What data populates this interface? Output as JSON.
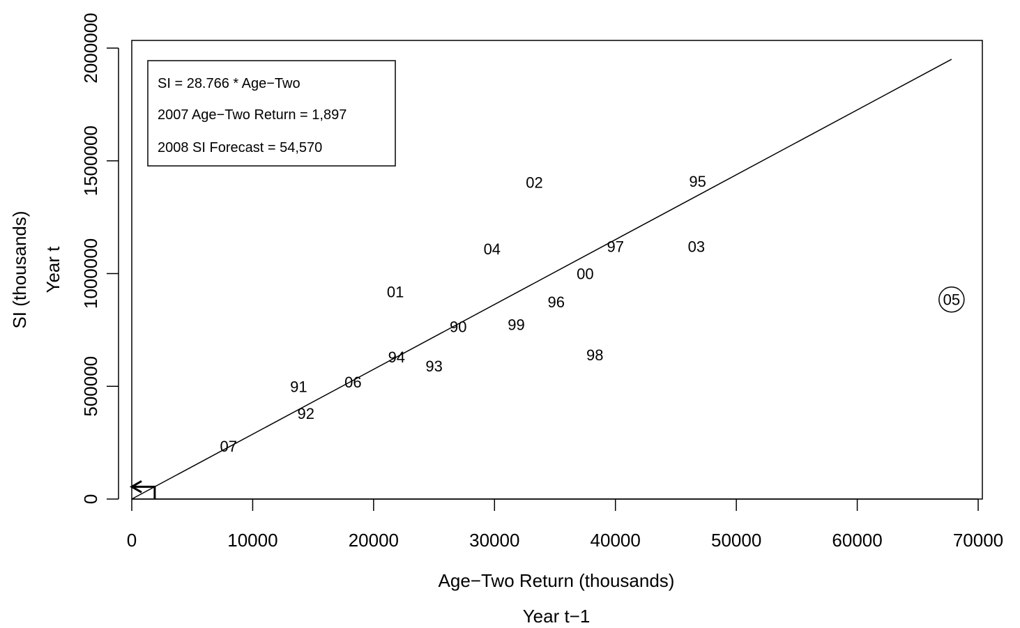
{
  "chart_data": {
    "type": "scatter",
    "title": "",
    "xlabel": "Age−Two Return (thousands)",
    "xlabel2": "Year t−1",
    "ylabel": "SI (thousands)",
    "ylabel2": "Year t",
    "xlim": [
      0,
      70000
    ],
    "ylim": [
      0,
      2000000
    ],
    "x_ticks": [
      0,
      10000,
      20000,
      30000,
      40000,
      50000,
      60000,
      70000
    ],
    "x_tick_labels": [
      "0",
      "10000",
      "20000",
      "30000",
      "40000",
      "50000",
      "60000",
      "70000"
    ],
    "y_ticks": [
      0,
      500000,
      1000000,
      1500000,
      2000000
    ],
    "y_tick_labels": [
      "0",
      "500000",
      "1000000",
      "1500000",
      "2000000"
    ],
    "grid": false,
    "legend": {
      "position": "top-left",
      "lines": [
        "SI = 28.766 * Age−Two",
        "2007 Age−Two Return = 1,897",
        "2008 SI Forecast = 54,570"
      ]
    },
    "points": [
      {
        "label": "90",
        "x": 27000,
        "y": 765000
      },
      {
        "label": "91",
        "x": 13800,
        "y": 500000
      },
      {
        "label": "92",
        "x": 14400,
        "y": 380000
      },
      {
        "label": "93",
        "x": 25000,
        "y": 590000
      },
      {
        "label": "94",
        "x": 21900,
        "y": 630000
      },
      {
        "label": "95",
        "x": 46800,
        "y": 1410000
      },
      {
        "label": "96",
        "x": 35100,
        "y": 875000
      },
      {
        "label": "97",
        "x": 40000,
        "y": 1120000
      },
      {
        "label": "98",
        "x": 38300,
        "y": 640000
      },
      {
        "label": "99",
        "x": 31800,
        "y": 775000
      },
      {
        "label": "00",
        "x": 37500,
        "y": 1000000
      },
      {
        "label": "01",
        "x": 21800,
        "y": 920000
      },
      {
        "label": "02",
        "x": 33300,
        "y": 1405000
      },
      {
        "label": "03",
        "x": 46700,
        "y": 1120000
      },
      {
        "label": "04",
        "x": 29800,
        "y": 1110000
      },
      {
        "label": "05",
        "x": 67800,
        "y": 885000,
        "circled": true
      },
      {
        "label": "06",
        "x": 18300,
        "y": 520000
      },
      {
        "label": "07",
        "x": 8000,
        "y": 235000
      }
    ],
    "fit_line": {
      "slope": 28.766,
      "x_start": 0,
      "x_end": 67800
    },
    "forecast": {
      "x": 1897,
      "y": 54570
    }
  }
}
